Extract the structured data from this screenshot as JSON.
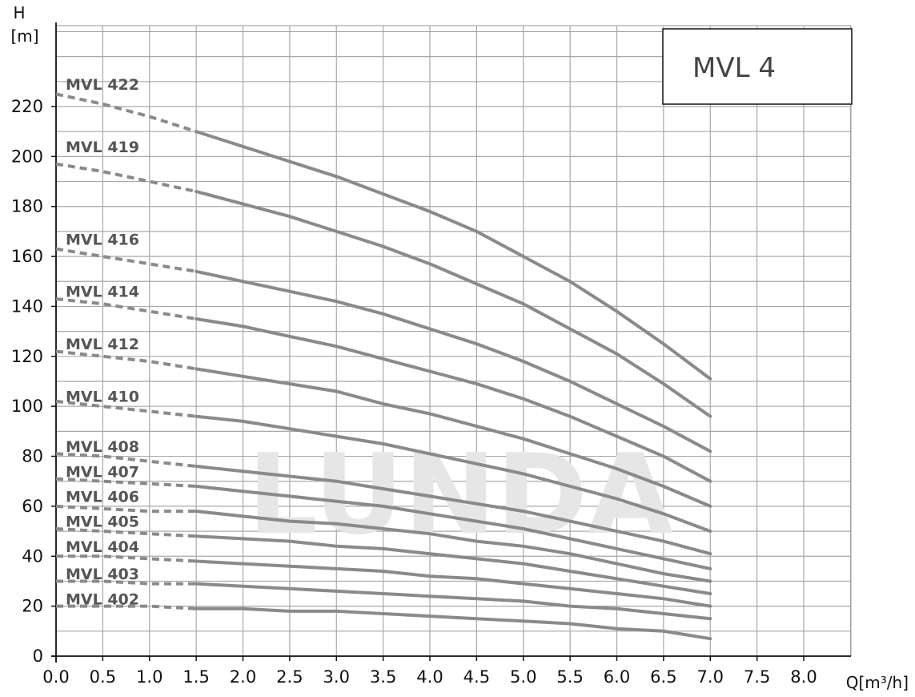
{
  "chart_data": {
    "type": "line",
    "title": "MVL 4",
    "watermark": "LUNDA",
    "xlabel": "Q[m³/h]",
    "ylabel_top": "H",
    "ylabel_unit": "[m]",
    "xlim": [
      0,
      8.5
    ],
    "ylim": [
      0,
      230
    ],
    "xticks": [
      "0.0",
      "0.5",
      "1.0",
      "1.5",
      "2.0",
      "2.5",
      "3.0",
      "3.5",
      "4.0",
      "4.5",
      "5.0",
      "5.5",
      "6.0",
      "6.5",
      "7.0",
      "7.5",
      "8.0"
    ],
    "yticks": [
      "0",
      "20",
      "40",
      "60",
      "80",
      "100",
      "120",
      "140",
      "160",
      "180",
      "200",
      "220"
    ],
    "grid": true,
    "line_color": "#8a8a8a",
    "dashed_range": [
      0,
      1.5
    ],
    "x": [
      0,
      0.5,
      1.0,
      1.5,
      2.0,
      2.5,
      3.0,
      3.5,
      4.0,
      4.5,
      5.0,
      5.5,
      6.0,
      6.5,
      7.0
    ],
    "series": [
      {
        "name": "MVL 422",
        "values": [
          225,
          221,
          216,
          210,
          204,
          198,
          192,
          185,
          178,
          170,
          160,
          150,
          138,
          125,
          111
        ]
      },
      {
        "name": "MVL 419",
        "values": [
          197,
          194,
          190,
          186,
          181,
          176,
          170,
          164,
          157,
          149,
          141,
          131,
          121,
          109,
          96
        ]
      },
      {
        "name": "MVL 416",
        "values": [
          163,
          160,
          157,
          154,
          150,
          146,
          142,
          137,
          131,
          125,
          118,
          110,
          101,
          92,
          82
        ]
      },
      {
        "name": "MVL 414",
        "values": [
          143,
          141,
          138,
          135,
          132,
          128,
          124,
          119,
          114,
          109,
          103,
          96,
          88,
          80,
          70
        ]
      },
      {
        "name": "MVL 412",
        "values": [
          122,
          120,
          118,
          115,
          112,
          109,
          106,
          101,
          97,
          92,
          87,
          81,
          75,
          68,
          60
        ]
      },
      {
        "name": "MVL 410",
        "values": [
          102,
          100,
          98,
          96,
          94,
          91,
          88,
          85,
          81,
          77,
          73,
          68,
          63,
          57,
          50
        ]
      },
      {
        "name": "MVL 408",
        "values": [
          81,
          80,
          78,
          76,
          74,
          72,
          70,
          67,
          64,
          61,
          58,
          54,
          50,
          46,
          41
        ]
      },
      {
        "name": "MVL 407",
        "values": [
          71,
          70,
          69,
          68,
          66,
          64,
          62,
          60,
          57,
          54,
          51,
          47,
          43,
          39,
          35
        ]
      },
      {
        "name": "MVL 406",
        "values": [
          60,
          59,
          58,
          58,
          56,
          54,
          53,
          51,
          49,
          46,
          44,
          41,
          37,
          33,
          30
        ]
      },
      {
        "name": "MVL 405",
        "values": [
          51,
          50,
          49,
          48,
          47,
          46,
          44,
          43,
          41,
          39,
          37,
          34,
          31,
          28,
          25
        ]
      },
      {
        "name": "MVL 404",
        "values": [
          40,
          40,
          39,
          38,
          37,
          36,
          35,
          34,
          32,
          31,
          29,
          27,
          25,
          23,
          20
        ]
      },
      {
        "name": "MVL 403",
        "values": [
          30,
          30,
          29,
          29,
          28,
          27,
          26,
          25,
          24,
          23,
          22,
          20,
          19,
          17,
          15
        ]
      },
      {
        "name": "MVL 402",
        "values": [
          20,
          20,
          20,
          19,
          19,
          18,
          18,
          17,
          16,
          15,
          14,
          13,
          11,
          10,
          7
        ]
      }
    ],
    "label_y_values": [
      229,
      204,
      167,
      146,
      125,
      104,
      84,
      74,
      64,
      54,
      44,
      33,
      23
    ]
  }
}
